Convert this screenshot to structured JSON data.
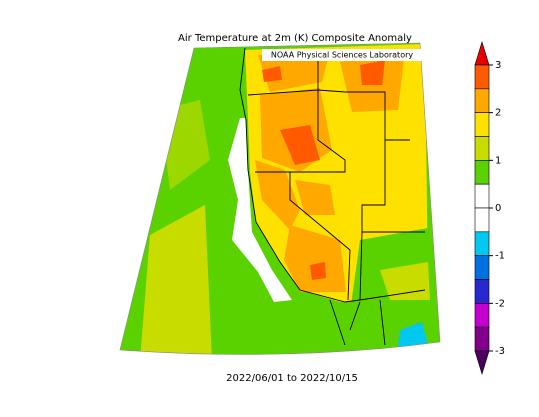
{
  "title": "Air Temperature at 2m (K) Composite Anomaly",
  "credit": "NOAA Physical Sciences Laboratory",
  "date_range": "2022/06/01 to 2022/10/15",
  "colorbar": {
    "ticks": [
      3,
      2,
      1,
      0,
      -1,
      -2,
      -3
    ],
    "over_color": "#e60000",
    "under_color": "#4b0060",
    "colors": [
      "#ff5a00",
      "#ffa800",
      "#ffe100",
      "#c8dc00",
      "#5ad200",
      "#ffffff",
      "#ffffff",
      "#00c8f0",
      "#0070e0",
      "#2828d0",
      "#c400d0",
      "#80008c"
    ]
  }
}
